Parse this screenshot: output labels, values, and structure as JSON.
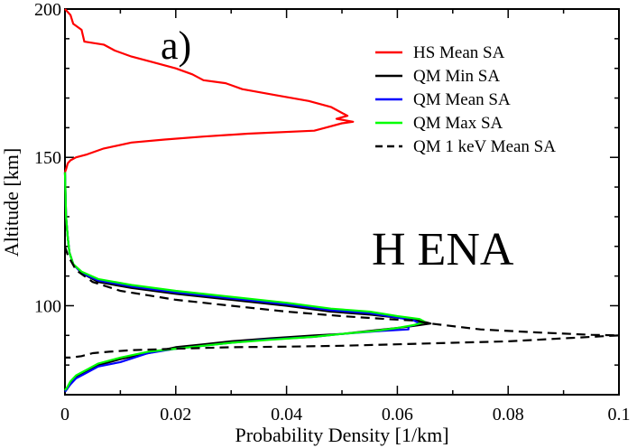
{
  "chart_data": {
    "type": "line",
    "title": "",
    "panel_label": "a)",
    "annotation": "H ENA",
    "xlabel": "Probability Density [1/km]",
    "ylabel": "Altitude [km]",
    "xlim": [
      0,
      0.1
    ],
    "ylim": [
      70,
      200
    ],
    "grid": false,
    "legend_position": "top-right",
    "x_ticks": [
      0,
      0.02,
      0.04,
      0.06,
      0.08,
      0.1
    ],
    "x_tick_labels": [
      "0",
      "0.02",
      "0.04",
      "0.06",
      "0.08",
      "0.1"
    ],
    "y_ticks": [
      100,
      150,
      200
    ],
    "y_tick_labels": [
      "100",
      "150",
      "200"
    ],
    "series": [
      {
        "name": "HS Mean SA",
        "color": "#ff0000",
        "dash": "solid",
        "points": [
          [
            0.0,
            200
          ],
          [
            0.001,
            198
          ],
          [
            0.0015,
            195
          ],
          [
            0.003,
            193
          ],
          [
            0.0035,
            189
          ],
          [
            0.007,
            188
          ],
          [
            0.009,
            186
          ],
          [
            0.012,
            184
          ],
          [
            0.016,
            182
          ],
          [
            0.02,
            180
          ],
          [
            0.023,
            178
          ],
          [
            0.025,
            176
          ],
          [
            0.029,
            175
          ],
          [
            0.032,
            173
          ],
          [
            0.038,
            171
          ],
          [
            0.044,
            169
          ],
          [
            0.048,
            167
          ],
          [
            0.05,
            165
          ],
          [
            0.051,
            164
          ],
          [
            0.049,
            163
          ],
          [
            0.052,
            162
          ],
          [
            0.05,
            161.5
          ],
          [
            0.047,
            160
          ],
          [
            0.045,
            159
          ],
          [
            0.033,
            158
          ],
          [
            0.025,
            157
          ],
          [
            0.018,
            156
          ],
          [
            0.012,
            155
          ],
          [
            0.007,
            153
          ],
          [
            0.004,
            151
          ],
          [
            0.002,
            150
          ],
          [
            0.001,
            149
          ],
          [
            0.0005,
            148
          ],
          [
            0.0002,
            146
          ],
          [
            0.0,
            145
          ]
        ]
      },
      {
        "name": "QM Min SA",
        "color": "#000000",
        "dash": "solid",
        "points": [
          [
            0.0,
            145
          ],
          [
            0.0002,
            130
          ],
          [
            0.0005,
            123
          ],
          [
            0.0008,
            118
          ],
          [
            0.0015,
            114
          ],
          [
            0.003,
            111
          ],
          [
            0.006,
            108
          ],
          [
            0.012,
            106
          ],
          [
            0.02,
            104
          ],
          [
            0.03,
            102
          ],
          [
            0.04,
            100
          ],
          [
            0.048,
            98
          ],
          [
            0.055,
            97
          ],
          [
            0.06,
            96
          ],
          [
            0.064,
            95
          ],
          [
            0.066,
            94
          ],
          [
            0.063,
            93.2
          ],
          [
            0.06,
            92.5
          ],
          [
            0.055,
            91.5
          ],
          [
            0.05,
            90.5
          ],
          [
            0.045,
            90
          ],
          [
            0.037,
            89
          ],
          [
            0.03,
            88
          ],
          [
            0.025,
            87
          ],
          [
            0.02,
            86
          ],
          [
            0.015,
            84
          ],
          [
            0.01,
            82
          ],
          [
            0.006,
            80
          ],
          [
            0.004,
            78
          ],
          [
            0.002,
            76
          ],
          [
            0.001,
            74
          ],
          [
            0.0004,
            72
          ],
          [
            0.0,
            71
          ]
        ]
      },
      {
        "name": "QM Mean SA",
        "color": "#0000ff",
        "dash": "solid",
        "points": [
          [
            0.0,
            145
          ],
          [
            0.0002,
            130
          ],
          [
            0.0005,
            123
          ],
          [
            0.0008,
            118
          ],
          [
            0.0015,
            114
          ],
          [
            0.003,
            111
          ],
          [
            0.006,
            108.5
          ],
          [
            0.012,
            106.5
          ],
          [
            0.02,
            104.5
          ],
          [
            0.03,
            102.5
          ],
          [
            0.04,
            100.5
          ],
          [
            0.048,
            98.5
          ],
          [
            0.055,
            97.5
          ],
          [
            0.06,
            96
          ],
          [
            0.063,
            95
          ],
          [
            0.064,
            94
          ],
          [
            0.062,
            93
          ],
          [
            0.062,
            92
          ],
          [
            0.057,
            91.5
          ],
          [
            0.05,
            90.5
          ],
          [
            0.045,
            89.5
          ],
          [
            0.036,
            88.5
          ],
          [
            0.03,
            87.5
          ],
          [
            0.025,
            86.5
          ],
          [
            0.02,
            85.5
          ],
          [
            0.015,
            84
          ],
          [
            0.01,
            81
          ],
          [
            0.006,
            79.5
          ],
          [
            0.004,
            77.5
          ],
          [
            0.002,
            75.5
          ],
          [
            0.001,
            73.5
          ],
          [
            0.0004,
            72
          ],
          [
            0.0,
            71
          ]
        ]
      },
      {
        "name": "QM Max SA",
        "color": "#00ff00",
        "dash": "solid",
        "points": [
          [
            0.0,
            145
          ],
          [
            0.0002,
            130
          ],
          [
            0.0005,
            123
          ],
          [
            0.0008,
            118
          ],
          [
            0.0015,
            114
          ],
          [
            0.003,
            111.5
          ],
          [
            0.006,
            109
          ],
          [
            0.012,
            107
          ],
          [
            0.02,
            105
          ],
          [
            0.03,
            103
          ],
          [
            0.04,
            101
          ],
          [
            0.048,
            99
          ],
          [
            0.055,
            98
          ],
          [
            0.06,
            96.5
          ],
          [
            0.064,
            95.5
          ],
          [
            0.065,
            94.5
          ],
          [
            0.063,
            93.5
          ],
          [
            0.06,
            92.5
          ],
          [
            0.056,
            91.5
          ],
          [
            0.05,
            90.5
          ],
          [
            0.045,
            89.5
          ],
          [
            0.037,
            88.5
          ],
          [
            0.03,
            87.5
          ],
          [
            0.025,
            86.5
          ],
          [
            0.02,
            85.5
          ],
          [
            0.015,
            84.5
          ],
          [
            0.01,
            82.5
          ],
          [
            0.006,
            80.5
          ],
          [
            0.004,
            78.5
          ],
          [
            0.002,
            76.5
          ],
          [
            0.001,
            74.5
          ],
          [
            0.0004,
            72.5
          ],
          [
            0.0,
            71.5
          ]
        ]
      },
      {
        "name": "QM 1 keV Mean SA",
        "color": "#000000",
        "dash": "dashed",
        "points": [
          [
            0.0,
            120
          ],
          [
            0.0005,
            117
          ],
          [
            0.002,
            112
          ],
          [
            0.005,
            108
          ],
          [
            0.01,
            105
          ],
          [
            0.02,
            102
          ],
          [
            0.03,
            100
          ],
          [
            0.04,
            98
          ],
          [
            0.05,
            96.5
          ],
          [
            0.058,
            95.5
          ],
          [
            0.063,
            95
          ],
          [
            0.066,
            94
          ],
          [
            0.075,
            92
          ],
          [
            0.085,
            91
          ],
          [
            0.095,
            90.2
          ],
          [
            0.1,
            90
          ],
          [
            0.09,
            89
          ],
          [
            0.08,
            88
          ],
          [
            0.07,
            87.5
          ],
          [
            0.06,
            87
          ],
          [
            0.05,
            86.5
          ],
          [
            0.04,
            86.2
          ],
          [
            0.03,
            86
          ],
          [
            0.02,
            85.5
          ],
          [
            0.012,
            85
          ],
          [
            0.008,
            84.5
          ],
          [
            0.005,
            84
          ],
          [
            0.003,
            83
          ],
          [
            0.001,
            82.5
          ],
          [
            0.0,
            82.5
          ]
        ]
      }
    ]
  }
}
